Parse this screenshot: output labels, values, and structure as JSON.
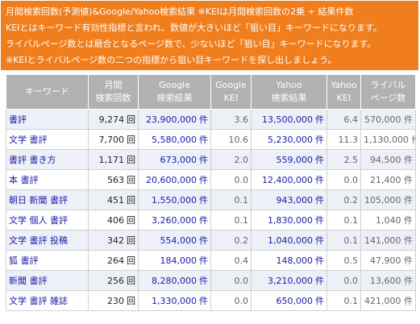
{
  "banner": {
    "lines": [
      "月間検索回数(予測値)&Google/Yahoo検索結果 ※KEIは月間検索回数の2乗 ÷ 結果件数",
      "KEIとはキーワード有効性指標と言われ、数値が大きいほど「狙い目」キーワードになります。",
      "ライバルページ数とは競合となるページ数で、少ないほど「狙い目」キーワードになります。",
      "※KEIとライバルページ数の二つの指標から狙い目キーワードを探し出しましょう。"
    ]
  },
  "table": {
    "headers": [
      {
        "lines": [
          "キーワード"
        ]
      },
      {
        "lines": [
          "月間",
          "検索回数"
        ]
      },
      {
        "lines": [
          "Google",
          "検索結果"
        ]
      },
      {
        "lines": [
          "Google",
          "KEI"
        ]
      },
      {
        "lines": [
          "Yahoo",
          "検索結果"
        ]
      },
      {
        "lines": [
          "Yahoo",
          "KEI"
        ]
      },
      {
        "lines": [
          "ライバル",
          "ページ数"
        ]
      }
    ],
    "count_unit": "回",
    "result_unit": "件",
    "rows": [
      {
        "keyword": "書評",
        "monthly": "9,274",
        "google": "23,900,000",
        "gkei": "3.6",
        "yahoo": "13,500,000",
        "ykei": "6.4",
        "rival": "570,000 件"
      },
      {
        "keyword": "文学 書評",
        "monthly": "7,700",
        "google": "5,580,000",
        "gkei": "10.6",
        "yahoo": "5,230,000",
        "ykei": "11.3",
        "rival": "1,130,000 件"
      },
      {
        "keyword": "書評 書き方",
        "monthly": "1,171",
        "google": "673,000",
        "gkei": "2.0",
        "yahoo": "559,000",
        "ykei": "2.5",
        "rival": "94,500 件"
      },
      {
        "keyword": "本 書評",
        "monthly": "563",
        "google": "20,600,000",
        "gkei": "0.0",
        "yahoo": "12,400,000",
        "ykei": "0.0",
        "rival": "21,400 件"
      },
      {
        "keyword": "朝日 新聞 書評",
        "monthly": "451",
        "google": "1,550,000",
        "gkei": "0.1",
        "yahoo": "943,000",
        "ykei": "0.2",
        "rival": "105,000 件"
      },
      {
        "keyword": "文学 個人 書評",
        "monthly": "406",
        "google": "3,260,000",
        "gkei": "0.1",
        "yahoo": "1,830,000",
        "ykei": "0.1",
        "rival": "1,040 件"
      },
      {
        "keyword": "文学 書評 投稿",
        "monthly": "342",
        "google": "554,000",
        "gkei": "0.2",
        "yahoo": "1,040,000",
        "ykei": "0.1",
        "rival": "141,000 件"
      },
      {
        "keyword": "狐 書評",
        "monthly": "264",
        "google": "184,000",
        "gkei": "0.4",
        "yahoo": "148,000",
        "ykei": "0.5",
        "rival": "47,900 件"
      },
      {
        "keyword": "新聞 書評",
        "monthly": "256",
        "google": "8,280,000",
        "gkei": "0.0",
        "yahoo": "3,210,000",
        "ykei": "0.0",
        "rival": "13,600 件"
      },
      {
        "keyword": "文学 書評 雑誌",
        "monthly": "230",
        "google": "1,330,000",
        "gkei": "0.0",
        "yahoo": "650,000",
        "ykei": "0.1",
        "rival": "421,000 件"
      }
    ]
  }
}
